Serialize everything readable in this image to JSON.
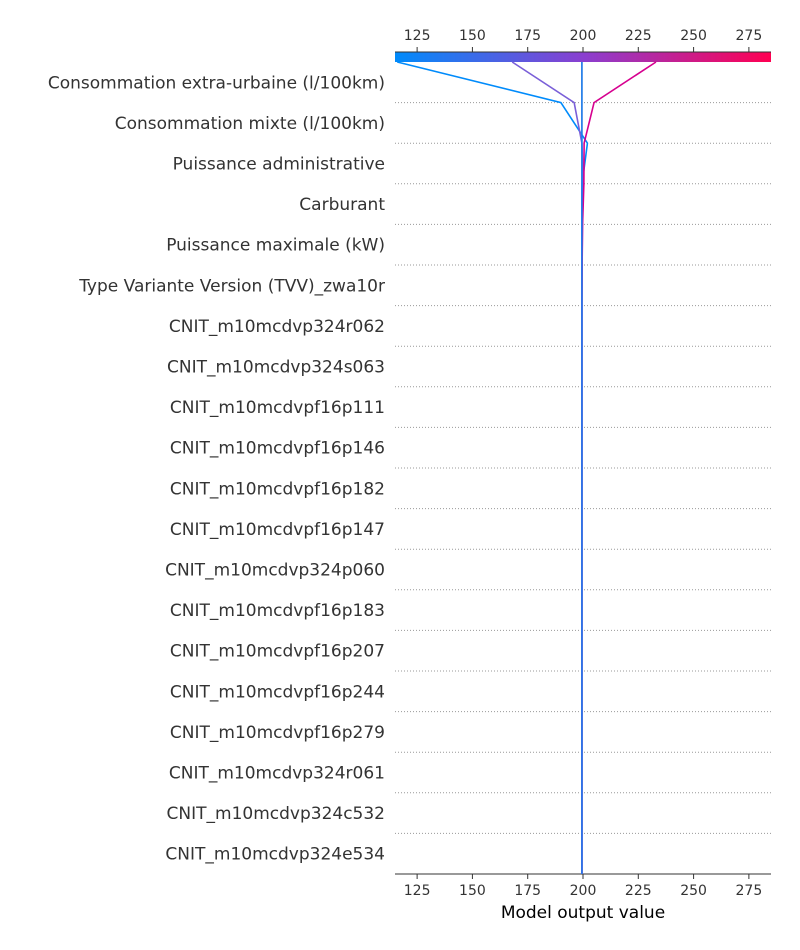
{
  "chart_data": {
    "type": "decision",
    "title": "",
    "xlabel": "Model output value",
    "ylabel": "",
    "xlim": [
      115,
      285
    ],
    "ticks": [
      125,
      150,
      175,
      200,
      225,
      250,
      275
    ],
    "base_value": 199.5,
    "colorbar": {
      "low_color": "#008bfb",
      "mid_color": "#7a5fd8",
      "high_color": "#ff0052"
    },
    "features": [
      "Consommation extra-urbaine (l/100km)",
      "Consommation mixte (l/100km)",
      "Puissance administrative",
      "Carburant",
      "Puissance maximale (kW)",
      "Type Variante Version (TVV)_zwa10r",
      "CNIT_m10mcdvp324r062",
      "CNIT_m10mcdvp324s063",
      "CNIT_m10mcdvpf16p111",
      "CNIT_m10mcdvpf16p146",
      "CNIT_m10mcdvpf16p182",
      "CNIT_m10mcdvpf16p147",
      "CNIT_m10mcdvp324p060",
      "CNIT_m10mcdvpf16p183",
      "CNIT_m10mcdvpf16p207",
      "CNIT_m10mcdvpf16p244",
      "CNIT_m10mcdvpf16p279",
      "CNIT_m10mcdvp324r061",
      "CNIT_m10mcdvp324c532",
      "CNIT_m10mcdvp324e534"
    ],
    "series": [
      {
        "color": "#008bfb",
        "values": [
          116,
          190,
          202,
          199.6,
          199.5,
          199.5,
          199.5,
          199.5,
          199.5,
          199.5,
          199.5,
          199.5,
          199.5,
          199.5,
          199.5,
          199.5,
          199.5,
          199.5,
          199.5,
          199.5,
          199.5
        ]
      },
      {
        "color": "#7a5fd8",
        "values": [
          168,
          196,
          199.5,
          200.2,
          199.7,
          199.6,
          199.5,
          199.5,
          199.5,
          199.5,
          199.5,
          199.5,
          199.5,
          199.5,
          199.5,
          199.5,
          199.5,
          199.5,
          199.5,
          199.5,
          199.5
        ]
      },
      {
        "color": "#d6008f",
        "values": [
          233,
          205,
          200.5,
          200.4,
          199.8,
          199.6,
          199.5,
          199.5,
          199.5,
          199.5,
          199.5,
          199.5,
          199.5,
          199.5,
          199.5,
          199.5,
          199.5,
          199.5,
          199.5,
          199.5,
          199.5
        ]
      },
      {
        "color": "#1e7ef0",
        "values": [
          199.5,
          199.5,
          199.5,
          199.5,
          199.5,
          199.5,
          199.5,
          199.5,
          199.5,
          199.5,
          199.5,
          199.5,
          199.5,
          199.5,
          199.5,
          199.5,
          199.5,
          199.5,
          199.5,
          199.5,
          199.5
        ]
      }
    ]
  }
}
